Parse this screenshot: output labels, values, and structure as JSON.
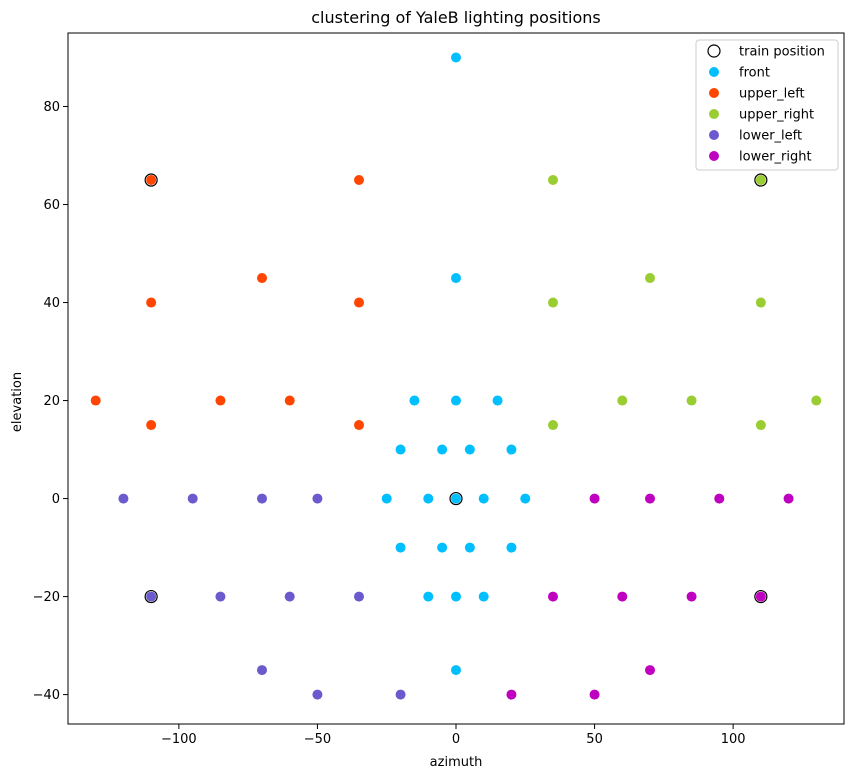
{
  "chart_data": {
    "type": "scatter",
    "title": "clustering of YaleB lighting positions",
    "xlabel": "azimuth",
    "ylabel": "elevation",
    "xlim": [
      -140,
      140
    ],
    "ylim": [
      -46,
      95
    ],
    "xticks": [
      -100,
      -50,
      0,
      50,
      100
    ],
    "yticks": [
      -40,
      -20,
      0,
      20,
      40,
      60,
      80
    ],
    "xtick_labels": [
      "−100",
      "−50",
      "0",
      "50",
      "100"
    ],
    "ytick_labels": [
      "−40",
      "−20",
      "0",
      "20",
      "40",
      "60",
      "80"
    ],
    "grid": false,
    "legend_position": "top-right",
    "series": [
      {
        "name": "front",
        "color": "#00bfff",
        "points": [
          [
            0,
            90
          ],
          [
            0,
            45
          ],
          [
            -15,
            20
          ],
          [
            0,
            20
          ],
          [
            15,
            20
          ],
          [
            -20,
            10
          ],
          [
            -5,
            10
          ],
          [
            5,
            10
          ],
          [
            20,
            10
          ],
          [
            -25,
            0
          ],
          [
            -10,
            0
          ],
          [
            0,
            0
          ],
          [
            10,
            0
          ],
          [
            25,
            0
          ],
          [
            -20,
            -10
          ],
          [
            -5,
            -10
          ],
          [
            5,
            -10
          ],
          [
            20,
            -10
          ],
          [
            -10,
            -20
          ],
          [
            0,
            -20
          ],
          [
            10,
            -20
          ],
          [
            0,
            -35
          ]
        ]
      },
      {
        "name": "upper_left",
        "color": "#ff4500",
        "points": [
          [
            -110,
            65
          ],
          [
            -35,
            65
          ],
          [
            -70,
            45
          ],
          [
            -110,
            40
          ],
          [
            -35,
            40
          ],
          [
            -130,
            20
          ],
          [
            -85,
            20
          ],
          [
            -60,
            20
          ],
          [
            -110,
            15
          ],
          [
            -35,
            15
          ]
        ]
      },
      {
        "name": "upper_right",
        "color": "#9acd32",
        "points": [
          [
            35,
            65
          ],
          [
            110,
            65
          ],
          [
            70,
            45
          ],
          [
            35,
            40
          ],
          [
            110,
            40
          ],
          [
            60,
            20
          ],
          [
            85,
            20
          ],
          [
            130,
            20
          ],
          [
            35,
            15
          ],
          [
            110,
            15
          ]
        ]
      },
      {
        "name": "lower_left",
        "color": "#6a5acd",
        "points": [
          [
            -120,
            0
          ],
          [
            -95,
            0
          ],
          [
            -70,
            0
          ],
          [
            -50,
            0
          ],
          [
            -110,
            -20
          ],
          [
            -85,
            -20
          ],
          [
            -60,
            -20
          ],
          [
            -35,
            -20
          ],
          [
            -70,
            -35
          ],
          [
            -50,
            -40
          ],
          [
            -20,
            -40
          ]
        ]
      },
      {
        "name": "lower_right",
        "color": "#c000c0",
        "points": [
          [
            50,
            0
          ],
          [
            70,
            0
          ],
          [
            95,
            0
          ],
          [
            120,
            0
          ],
          [
            35,
            -20
          ],
          [
            60,
            -20
          ],
          [
            85,
            -20
          ],
          [
            110,
            -20
          ],
          [
            70,
            -35
          ],
          [
            20,
            -40
          ],
          [
            50,
            -40
          ]
        ]
      }
    ],
    "train_positions": {
      "name": "train position",
      "points": [
        [
          -110,
          65
        ],
        [
          110,
          65
        ],
        [
          0,
          0
        ],
        [
          -110,
          -20
        ],
        [
          110,
          -20
        ]
      ]
    }
  }
}
